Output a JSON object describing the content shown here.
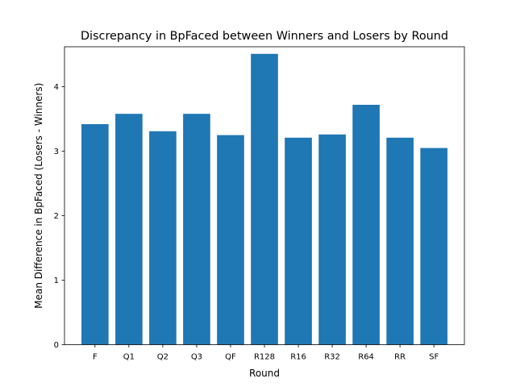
{
  "chart_data": {
    "type": "bar",
    "title": "Discrepancy in BpFaced between Winners and Losers by Round",
    "xlabel": "Round",
    "ylabel": "Mean Difference in BpFaced (Losers - Winners)",
    "categories": [
      "F",
      "Q1",
      "Q2",
      "Q3",
      "QF",
      "R128",
      "R16",
      "R32",
      "R64",
      "RR",
      "SF"
    ],
    "values": [
      3.42,
      3.58,
      3.31,
      3.58,
      3.25,
      4.51,
      3.21,
      3.26,
      3.72,
      3.21,
      3.05
    ],
    "ylim": [
      0,
      4.62
    ],
    "yticks": [
      0,
      1,
      2,
      3,
      4
    ],
    "grid": false,
    "bar_color": "#1f77b4"
  }
}
